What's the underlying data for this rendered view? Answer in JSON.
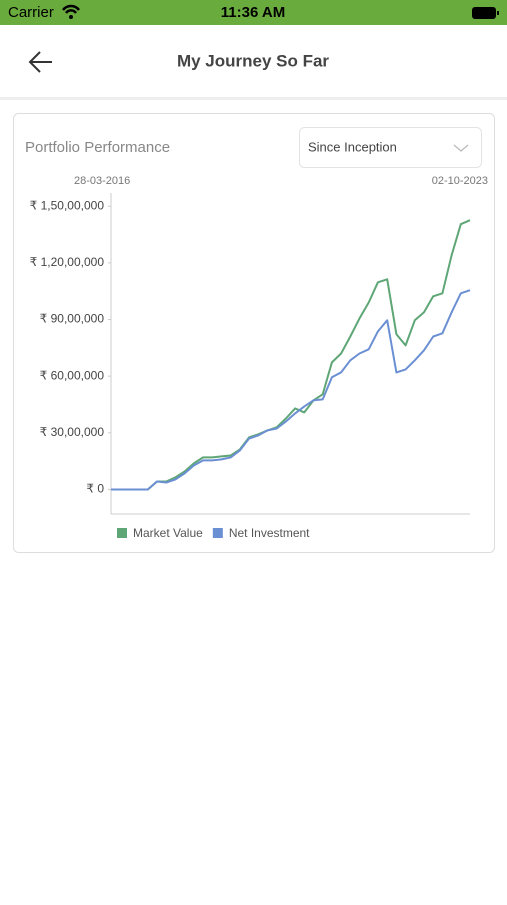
{
  "status_bar": {
    "carrier": "Carrier",
    "time": "11:36 AM"
  },
  "header": {
    "title": "My Journey So Far"
  },
  "card": {
    "title": "Portfolio Performance",
    "dropdown": "Since Inception"
  },
  "chart_data": {
    "type": "line",
    "date_range": [
      "28-03-2016",
      "02-10-2023"
    ],
    "categories": [
      null,
      null,
      null,
      null,
      null,
      null,
      null,
      null,
      null,
      null,
      null,
      null,
      null,
      null,
      null,
      null,
      null,
      null,
      null,
      null,
      null,
      null,
      null,
      null,
      null,
      null,
      null,
      null,
      null,
      null,
      null,
      null,
      null,
      null,
      null,
      null,
      null,
      null,
      null,
      null
    ],
    "series": [
      {
        "name": "Market Value",
        "color": "#5fa676",
        "values": [
          0,
          0,
          0,
          0,
          0,
          420000,
          420000,
          640000,
          950000,
          1380000,
          1700000,
          1700000,
          1750000,
          1800000,
          2120000,
          2760000,
          2920000,
          3130000,
          3290000,
          3760000,
          4290000,
          4080000,
          4720000,
          5040000,
          6730000,
          7200000,
          8100000,
          9060000,
          9900000,
          10970000,
          11130000,
          8220000,
          7630000,
          8960000,
          9380000,
          10230000,
          10390000,
          12400000,
          14050000,
          14260000
        ]
      },
      {
        "name": "Net Investment",
        "color": "#6b8fd3",
        "values": [
          0,
          0,
          0,
          0,
          0,
          420000,
          370000,
          530000,
          850000,
          1270000,
          1540000,
          1540000,
          1590000,
          1700000,
          2070000,
          2700000,
          2860000,
          3130000,
          3230000,
          3600000,
          4030000,
          4400000,
          4720000,
          4770000,
          5940000,
          6200000,
          6840000,
          7200000,
          7420000,
          8370000,
          8960000,
          6200000,
          6360000,
          6840000,
          7370000,
          8100000,
          8270000,
          9380000,
          10390000,
          10550000
        ]
      }
    ],
    "ylim": [
      -1300000,
      15700000
    ],
    "yticks": [
      {
        "value": 0,
        "label": "₹ 0"
      },
      {
        "value": 3000000,
        "label": "₹ 30,00,000"
      },
      {
        "value": 6000000,
        "label": "₹ 60,00,000"
      },
      {
        "value": 9000000,
        "label": "₹ 90,00,000"
      },
      {
        "value": 12000000,
        "label": "₹ 1,20,00,000"
      },
      {
        "value": 15000000,
        "label": "₹ 1,50,00,000"
      }
    ],
    "legend": "bottom"
  }
}
